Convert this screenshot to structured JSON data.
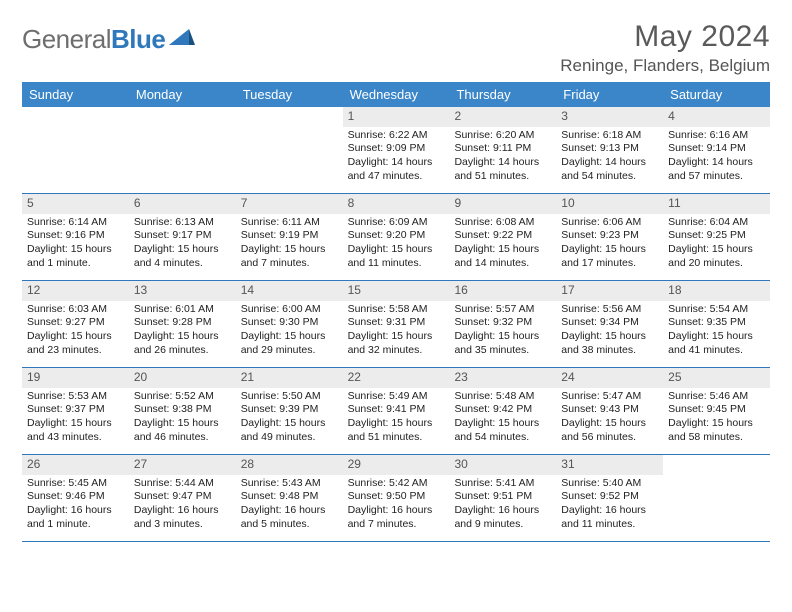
{
  "brand": {
    "part1": "General",
    "part2": "Blue"
  },
  "title": "May 2024",
  "location": "Reninge, Flanders, Belgium",
  "colors": {
    "header_bg": "#3a86c8",
    "row_divider": "#2f78bc",
    "daynum_bg": "#ececec",
    "text": "#222222",
    "title_color": "#5a5a5a"
  },
  "weekdays": [
    "Sunday",
    "Monday",
    "Tuesday",
    "Wednesday",
    "Thursday",
    "Friday",
    "Saturday"
  ],
  "weeks": [
    [
      {
        "day": "",
        "sunrise": "",
        "sunset": "",
        "daylight": ""
      },
      {
        "day": "",
        "sunrise": "",
        "sunset": "",
        "daylight": ""
      },
      {
        "day": "",
        "sunrise": "",
        "sunset": "",
        "daylight": ""
      },
      {
        "day": "1",
        "sunrise": "Sunrise: 6:22 AM",
        "sunset": "Sunset: 9:09 PM",
        "daylight": "Daylight: 14 hours and 47 minutes."
      },
      {
        "day": "2",
        "sunrise": "Sunrise: 6:20 AM",
        "sunset": "Sunset: 9:11 PM",
        "daylight": "Daylight: 14 hours and 51 minutes."
      },
      {
        "day": "3",
        "sunrise": "Sunrise: 6:18 AM",
        "sunset": "Sunset: 9:13 PM",
        "daylight": "Daylight: 14 hours and 54 minutes."
      },
      {
        "day": "4",
        "sunrise": "Sunrise: 6:16 AM",
        "sunset": "Sunset: 9:14 PM",
        "daylight": "Daylight: 14 hours and 57 minutes."
      }
    ],
    [
      {
        "day": "5",
        "sunrise": "Sunrise: 6:14 AM",
        "sunset": "Sunset: 9:16 PM",
        "daylight": "Daylight: 15 hours and 1 minute."
      },
      {
        "day": "6",
        "sunrise": "Sunrise: 6:13 AM",
        "sunset": "Sunset: 9:17 PM",
        "daylight": "Daylight: 15 hours and 4 minutes."
      },
      {
        "day": "7",
        "sunrise": "Sunrise: 6:11 AM",
        "sunset": "Sunset: 9:19 PM",
        "daylight": "Daylight: 15 hours and 7 minutes."
      },
      {
        "day": "8",
        "sunrise": "Sunrise: 6:09 AM",
        "sunset": "Sunset: 9:20 PM",
        "daylight": "Daylight: 15 hours and 11 minutes."
      },
      {
        "day": "9",
        "sunrise": "Sunrise: 6:08 AM",
        "sunset": "Sunset: 9:22 PM",
        "daylight": "Daylight: 15 hours and 14 minutes."
      },
      {
        "day": "10",
        "sunrise": "Sunrise: 6:06 AM",
        "sunset": "Sunset: 9:23 PM",
        "daylight": "Daylight: 15 hours and 17 minutes."
      },
      {
        "day": "11",
        "sunrise": "Sunrise: 6:04 AM",
        "sunset": "Sunset: 9:25 PM",
        "daylight": "Daylight: 15 hours and 20 minutes."
      }
    ],
    [
      {
        "day": "12",
        "sunrise": "Sunrise: 6:03 AM",
        "sunset": "Sunset: 9:27 PM",
        "daylight": "Daylight: 15 hours and 23 minutes."
      },
      {
        "day": "13",
        "sunrise": "Sunrise: 6:01 AM",
        "sunset": "Sunset: 9:28 PM",
        "daylight": "Daylight: 15 hours and 26 minutes."
      },
      {
        "day": "14",
        "sunrise": "Sunrise: 6:00 AM",
        "sunset": "Sunset: 9:30 PM",
        "daylight": "Daylight: 15 hours and 29 minutes."
      },
      {
        "day": "15",
        "sunrise": "Sunrise: 5:58 AM",
        "sunset": "Sunset: 9:31 PM",
        "daylight": "Daylight: 15 hours and 32 minutes."
      },
      {
        "day": "16",
        "sunrise": "Sunrise: 5:57 AM",
        "sunset": "Sunset: 9:32 PM",
        "daylight": "Daylight: 15 hours and 35 minutes."
      },
      {
        "day": "17",
        "sunrise": "Sunrise: 5:56 AM",
        "sunset": "Sunset: 9:34 PM",
        "daylight": "Daylight: 15 hours and 38 minutes."
      },
      {
        "day": "18",
        "sunrise": "Sunrise: 5:54 AM",
        "sunset": "Sunset: 9:35 PM",
        "daylight": "Daylight: 15 hours and 41 minutes."
      }
    ],
    [
      {
        "day": "19",
        "sunrise": "Sunrise: 5:53 AM",
        "sunset": "Sunset: 9:37 PM",
        "daylight": "Daylight: 15 hours and 43 minutes."
      },
      {
        "day": "20",
        "sunrise": "Sunrise: 5:52 AM",
        "sunset": "Sunset: 9:38 PM",
        "daylight": "Daylight: 15 hours and 46 minutes."
      },
      {
        "day": "21",
        "sunrise": "Sunrise: 5:50 AM",
        "sunset": "Sunset: 9:39 PM",
        "daylight": "Daylight: 15 hours and 49 minutes."
      },
      {
        "day": "22",
        "sunrise": "Sunrise: 5:49 AM",
        "sunset": "Sunset: 9:41 PM",
        "daylight": "Daylight: 15 hours and 51 minutes."
      },
      {
        "day": "23",
        "sunrise": "Sunrise: 5:48 AM",
        "sunset": "Sunset: 9:42 PM",
        "daylight": "Daylight: 15 hours and 54 minutes."
      },
      {
        "day": "24",
        "sunrise": "Sunrise: 5:47 AM",
        "sunset": "Sunset: 9:43 PM",
        "daylight": "Daylight: 15 hours and 56 minutes."
      },
      {
        "day": "25",
        "sunrise": "Sunrise: 5:46 AM",
        "sunset": "Sunset: 9:45 PM",
        "daylight": "Daylight: 15 hours and 58 minutes."
      }
    ],
    [
      {
        "day": "26",
        "sunrise": "Sunrise: 5:45 AM",
        "sunset": "Sunset: 9:46 PM",
        "daylight": "Daylight: 16 hours and 1 minute."
      },
      {
        "day": "27",
        "sunrise": "Sunrise: 5:44 AM",
        "sunset": "Sunset: 9:47 PM",
        "daylight": "Daylight: 16 hours and 3 minutes."
      },
      {
        "day": "28",
        "sunrise": "Sunrise: 5:43 AM",
        "sunset": "Sunset: 9:48 PM",
        "daylight": "Daylight: 16 hours and 5 minutes."
      },
      {
        "day": "29",
        "sunrise": "Sunrise: 5:42 AM",
        "sunset": "Sunset: 9:50 PM",
        "daylight": "Daylight: 16 hours and 7 minutes."
      },
      {
        "day": "30",
        "sunrise": "Sunrise: 5:41 AM",
        "sunset": "Sunset: 9:51 PM",
        "daylight": "Daylight: 16 hours and 9 minutes."
      },
      {
        "day": "31",
        "sunrise": "Sunrise: 5:40 AM",
        "sunset": "Sunset: 9:52 PM",
        "daylight": "Daylight: 16 hours and 11 minutes."
      },
      {
        "day": "",
        "sunrise": "",
        "sunset": "",
        "daylight": ""
      }
    ]
  ]
}
